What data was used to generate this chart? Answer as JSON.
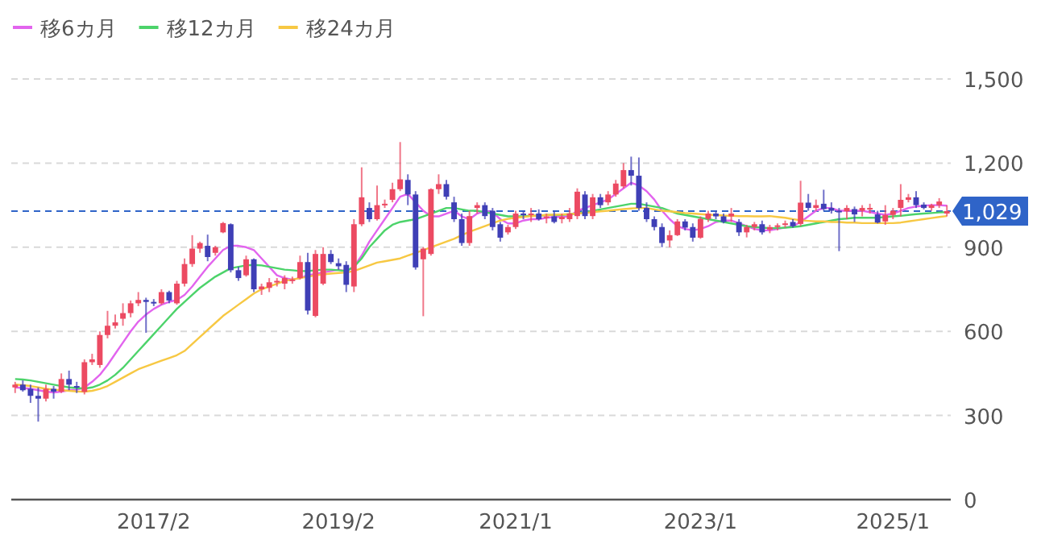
{
  "chart_data": {
    "type": "candlestick",
    "categories": [
      null,
      null,
      null,
      null,
      null,
      null,
      null,
      null,
      null,
      null,
      null,
      null,
      null,
      null,
      null,
      null,
      null,
      null,
      "2017/2",
      null,
      null,
      null,
      null,
      null,
      null,
      null,
      null,
      null,
      null,
      null,
      null,
      null,
      null,
      null,
      null,
      null,
      null,
      null,
      null,
      null,
      null,
      null,
      "2019/2",
      null,
      null,
      null,
      null,
      null,
      null,
      null,
      null,
      null,
      null,
      null,
      null,
      null,
      null,
      null,
      null,
      null,
      null,
      null,
      null,
      null,
      null,
      "2021/1",
      null,
      null,
      null,
      null,
      null,
      null,
      null,
      null,
      null,
      null,
      null,
      null,
      null,
      null,
      null,
      null,
      null,
      null,
      null,
      null,
      null,
      null,
      null,
      "2023/1",
      null,
      null,
      null,
      null,
      null,
      null,
      null,
      null,
      null,
      null,
      null,
      null,
      null,
      null,
      null,
      null,
      null,
      null,
      null,
      null,
      null,
      null,
      null,
      null,
      "2025/1",
      null,
      null,
      null,
      null,
      null,
      null,
      null
    ],
    "ohlc": [
      [
        400,
        420,
        380,
        410
      ],
      [
        410,
        425,
        385,
        390
      ],
      [
        395,
        410,
        345,
        370
      ],
      [
        370,
        400,
        278,
        360
      ],
      [
        360,
        410,
        350,
        395
      ],
      [
        395,
        405,
        360,
        385
      ],
      [
        385,
        450,
        380,
        430
      ],
      [
        430,
        460,
        390,
        410
      ],
      [
        405,
        420,
        380,
        400
      ],
      [
        384,
        500,
        375,
        490
      ],
      [
        490,
        520,
        480,
        500
      ],
      [
        480,
        600,
        470,
        587
      ],
      [
        587,
        673,
        575,
        620
      ],
      [
        620,
        660,
        610,
        632
      ],
      [
        645,
        700,
        620,
        665
      ],
      [
        665,
        710,
        650,
        700
      ],
      [
        700,
        740,
        690,
        712
      ],
      [
        712,
        720,
        595,
        705
      ],
      [
        705,
        715,
        690,
        700
      ],
      [
        700,
        750,
        695,
        740
      ],
      [
        740,
        745,
        700,
        710
      ],
      [
        700,
        780,
        695,
        770
      ],
      [
        770,
        860,
        760,
        840
      ],
      [
        840,
        943,
        830,
        895
      ],
      [
        895,
        920,
        880,
        915
      ],
      [
        905,
        945,
        850,
        865
      ],
      [
        880,
        905,
        870,
        900
      ],
      [
        953,
        990,
        950,
        986
      ],
      [
        982,
        985,
        810,
        818
      ],
      [
        818,
        830,
        780,
        790
      ],
      [
        800,
        870,
        795,
        857
      ],
      [
        857,
        860,
        740,
        750
      ],
      [
        750,
        770,
        730,
        760
      ],
      [
        755,
        790,
        740,
        775
      ],
      [
        775,
        790,
        760,
        780
      ],
      [
        770,
        800,
        750,
        790
      ],
      [
        785,
        795,
        770,
        785
      ],
      [
        790,
        870,
        785,
        847
      ],
      [
        847,
        880,
        660,
        674
      ],
      [
        655,
        890,
        650,
        876
      ],
      [
        770,
        900,
        765,
        876
      ],
      [
        876,
        890,
        840,
        847
      ],
      [
        843,
        860,
        820,
        832
      ],
      [
        837,
        850,
        740,
        766
      ],
      [
        760,
        1000,
        740,
        982
      ],
      [
        982,
        1185,
        975,
        1078
      ],
      [
        1040,
        1060,
        990,
        1000
      ],
      [
        1000,
        1120,
        995,
        1050
      ],
      [
        1050,
        1070,
        1040,
        1055
      ],
      [
        1069,
        1130,
        1060,
        1107
      ],
      [
        1107,
        1275,
        1100,
        1142
      ],
      [
        1140,
        1160,
        1050,
        1088
      ],
      [
        1088,
        1100,
        820,
        828
      ],
      [
        857,
        900,
        654,
        895
      ],
      [
        876,
        1110,
        870,
        1107
      ],
      [
        1107,
        1160,
        1090,
        1125
      ],
      [
        1125,
        1140,
        1070,
        1080
      ],
      [
        1060,
        1080,
        990,
        1000
      ],
      [
        1000,
        1020,
        905,
        915
      ],
      [
        915,
        1030,
        905,
        1011
      ],
      [
        1040,
        1060,
        1020,
        1050
      ],
      [
        1050,
        1060,
        1000,
        1011
      ],
      [
        1030,
        1040,
        960,
        972
      ],
      [
        982,
        990,
        920,
        934
      ],
      [
        953,
        980,
        945,
        972
      ],
      [
        972,
        1030,
        965,
        1020
      ],
      [
        1020,
        1030,
        1000,
        1015
      ],
      [
        1015,
        1040,
        990,
        1020
      ],
      [
        1020,
        1035,
        995,
        1000
      ],
      [
        1005,
        1020,
        985,
        1010
      ],
      [
        1010,
        1030,
        985,
        990
      ],
      [
        1000,
        1020,
        985,
        1008
      ],
      [
        1000,
        1040,
        990,
        1020
      ],
      [
        1011,
        1110,
        1000,
        1098
      ],
      [
        1088,
        1100,
        1000,
        1011
      ],
      [
        1011,
        1090,
        1000,
        1078
      ],
      [
        1078,
        1090,
        1040,
        1050
      ],
      [
        1060,
        1100,
        1050,
        1088
      ],
      [
        1088,
        1140,
        1080,
        1127
      ],
      [
        1117,
        1200,
        1110,
        1175
      ],
      [
        1175,
        1223,
        1120,
        1155
      ],
      [
        1155,
        1220,
        1030,
        1040
      ],
      [
        1040,
        1060,
        990,
        1000
      ],
      [
        1000,
        1010,
        960,
        972
      ],
      [
        972,
        985,
        900,
        915
      ],
      [
        924,
        960,
        900,
        943
      ],
      [
        943,
        1000,
        940,
        992
      ],
      [
        992,
        1000,
        960,
        970
      ],
      [
        972,
        985,
        920,
        934
      ],
      [
        934,
        1010,
        930,
        1001
      ],
      [
        1001,
        1030,
        990,
        1020
      ],
      [
        1020,
        1030,
        1000,
        1010
      ],
      [
        1010,
        1020,
        985,
        990
      ],
      [
        1010,
        1040,
        990,
        1020
      ],
      [
        990,
        1000,
        940,
        953
      ],
      [
        953,
        980,
        935,
        972
      ],
      [
        972,
        990,
        960,
        982
      ],
      [
        982,
        995,
        945,
        953
      ],
      [
        963,
        980,
        950,
        972
      ],
      [
        972,
        985,
        960,
        978
      ],
      [
        980,
        995,
        970,
        985
      ],
      [
        990,
        1000,
        970,
        975
      ],
      [
        983,
        1137,
        975,
        1059
      ],
      [
        1059,
        1090,
        1030,
        1040
      ],
      [
        1040,
        1070,
        1030,
        1050
      ],
      [
        1055,
        1105,
        1030,
        1036
      ],
      [
        1040,
        1060,
        1020,
        1030
      ],
      [
        1030,
        1040,
        886,
        1028
      ],
      [
        1028,
        1050,
        1000,
        1040
      ],
      [
        1036,
        1045,
        990,
        1017
      ],
      [
        1030,
        1050,
        1010,
        1040
      ],
      [
        1040,
        1055,
        1020,
        1040
      ],
      [
        1017,
        1030,
        985,
        988
      ],
      [
        992,
        1050,
        980,
        1015
      ],
      [
        1015,
        1040,
        1000,
        1030
      ],
      [
        1040,
        1125,
        1010,
        1069
      ],
      [
        1069,
        1090,
        1060,
        1078
      ],
      [
        1078,
        1100,
        1040,
        1050
      ],
      [
        1052,
        1060,
        1035,
        1040
      ],
      [
        1040,
        1055,
        1030,
        1050
      ],
      [
        1050,
        1075,
        1040,
        1063
      ],
      [
        1020,
        1050,
        1010,
        1029
      ]
    ],
    "colors": [
      "#ec4a62",
      "#3f3fb6",
      "#3f3fb6",
      "#3f3fb6",
      "#ec4a62",
      "#3f3fb6",
      "#ec4a62",
      "#3f3fb6",
      "#3f3fb6",
      "#ec4a62",
      "#ec4a62",
      "#ec4a62",
      "#ec4a62",
      "#ec4a62",
      "#ec4a62",
      "#ec4a62",
      "#ec4a62",
      "#3f3fb6",
      "#3f3fb6",
      "#ec4a62",
      "#3f3fb6",
      "#ec4a62",
      "#ec4a62",
      "#ec4a62",
      "#ec4a62",
      "#3f3fb6",
      "#ec4a62",
      "#ec4a62",
      "#3f3fb6",
      "#3f3fb6",
      "#ec4a62",
      "#3f3fb6",
      "#ec4a62",
      "#ec4a62",
      "#ec4a62",
      "#ec4a62",
      "#ec4a62",
      "#ec4a62",
      "#3f3fb6",
      "#ec4a62",
      "#ec4a62",
      "#3f3fb6",
      "#3f3fb6",
      "#3f3fb6",
      "#ec4a62",
      "#ec4a62",
      "#3f3fb6",
      "#ec4a62",
      "#ec4a62",
      "#ec4a62",
      "#ec4a62",
      "#3f3fb6",
      "#3f3fb6",
      "#ec4a62",
      "#ec4a62",
      "#ec4a62",
      "#3f3fb6",
      "#3f3fb6",
      "#3f3fb6",
      "#ec4a62",
      "#ec4a62",
      "#3f3fb6",
      "#3f3fb6",
      "#3f3fb6",
      "#ec4a62",
      "#ec4a62",
      "#3f3fb6",
      "#ec4a62",
      "#3f3fb6",
      "#ec4a62",
      "#3f3fb6",
      "#ec4a62",
      "#ec4a62",
      "#ec4a62",
      "#3f3fb6",
      "#ec4a62",
      "#3f3fb6",
      "#ec4a62",
      "#ec4a62",
      "#ec4a62",
      "#3f3fb6",
      "#3f3fb6",
      "#3f3fb6",
      "#3f3fb6",
      "#3f3fb6",
      "#ec4a62",
      "#ec4a62",
      "#3f3fb6",
      "#3f3fb6",
      "#ec4a62",
      "#ec4a62",
      "#3f3fb6",
      "#3f3fb6",
      "#ec4a62",
      "#3f3fb6",
      "#ec4a62",
      "#ec4a62",
      "#3f3fb6",
      "#ec4a62",
      "#ec4a62",
      "#ec4a62",
      "#3f3fb6",
      "#ec4a62",
      "#3f3fb6",
      "#ec4a62",
      "#3f3fb6",
      "#3f3fb6",
      "#3f3fb6",
      "#ec4a62",
      "#3f3fb6",
      "#ec4a62",
      "#ec4a62",
      "#3f3fb6",
      "#ec4a62",
      "#ec4a62",
      "#ec4a62",
      "#ec4a62",
      "#3f3fb6",
      "#3f3fb6",
      "#ec4a62",
      "#ec4a62",
      "#ec4a62"
    ],
    "series": [
      {
        "name": "移6カ月",
        "type": "line",
        "color": "#e264ee",
        "values": [
          400,
          398,
          395,
          390,
          385,
          382,
          385,
          390,
          392,
          400,
          420,
          445,
          480,
          520,
          560,
          600,
          635,
          660,
          680,
          695,
          705,
          712,
          730,
          760,
          795,
          830,
          860,
          890,
          905,
          905,
          900,
          890,
          860,
          830,
          800,
          790,
          785,
          790,
          800,
          805,
          810,
          815,
          820,
          815,
          830,
          870,
          920,
          960,
          1000,
          1040,
          1080,
          1090,
          1060,
          1030,
          1010,
          1010,
          1020,
          1030,
          1010,
          1000,
          1020,
          1030,
          1025,
          1000,
          985,
          985,
          995,
          1000,
          1000,
          1005,
          1008,
          1008,
          1010,
          1030,
          1040,
          1050,
          1060,
          1070,
          1090,
          1110,
          1130,
          1120,
          1100,
          1070,
          1030,
          1000,
          975,
          965,
          960,
          965,
          975,
          990,
          995,
          995,
          985,
          975,
          965,
          960,
          960,
          965,
          970,
          975,
          990,
          1010,
          1030,
          1040,
          1040,
          1030,
          1030,
          1030,
          1030,
          1025,
          1020,
          1015,
          1020,
          1030,
          1040,
          1045,
          1048,
          1050,
          1050,
          1048
        ]
      },
      {
        "name": "移12カ月",
        "type": "line",
        "color": "#4cd36a",
        "values": [
          430,
          428,
          425,
          420,
          415,
          410,
          405,
          400,
          398,
          396,
          400,
          410,
          425,
          445,
          470,
          500,
          530,
          560,
          590,
          620,
          650,
          680,
          705,
          730,
          755,
          775,
          795,
          810,
          825,
          830,
          835,
          837,
          835,
          830,
          825,
          820,
          818,
          815,
          815,
          818,
          820,
          820,
          818,
          815,
          830,
          860,
          900,
          930,
          960,
          980,
          990,
          995,
          1000,
          1010,
          1020,
          1030,
          1040,
          1040,
          1035,
          1030,
          1030,
          1025,
          1020,
          1015,
          1010,
          1010,
          1010,
          1012,
          1012,
          1015,
          1015,
          1015,
          1018,
          1020,
          1025,
          1030,
          1035,
          1040,
          1045,
          1050,
          1055,
          1055,
          1050,
          1045,
          1040,
          1030,
          1020,
          1015,
          1010,
          1005,
          1000,
          995,
          990,
          985,
          980,
          975,
          972,
          970,
          968,
          968,
          970,
          972,
          975,
          980,
          985,
          990,
          995,
          1000,
          1002,
          1005,
          1005,
          1005,
          1005,
          1008,
          1010,
          1012,
          1015,
          1018,
          1020,
          1022,
          1024,
          1025
        ]
      },
      {
        "name": "移24カ月",
        "type": "line",
        "color": "#f7c843",
        "values": [
          410,
          408,
          405,
          400,
          395,
          392,
          390,
          388,
          386,
          385,
          388,
          395,
          405,
          420,
          435,
          450,
          465,
          475,
          485,
          495,
          505,
          515,
          530,
          555,
          580,
          605,
          630,
          655,
          675,
          695,
          715,
          735,
          750,
          760,
          770,
          780,
          785,
          790,
          795,
          800,
          803,
          806,
          808,
          810,
          815,
          825,
          835,
          845,
          850,
          855,
          860,
          870,
          880,
          890,
          900,
          910,
          920,
          930,
          943,
          955,
          965,
          975,
          985,
          995,
          1001,
          1005,
          1008,
          1011,
          1013,
          1015,
          1016,
          1017,
          1018,
          1020,
          1022,
          1025,
          1028,
          1030,
          1033,
          1036,
          1038,
          1040,
          1040,
          1035,
          1030,
          1028,
          1025,
          1022,
          1020,
          1018,
          1016,
          1015,
          1013,
          1012,
          1011,
          1011,
          1010,
          1010,
          1011,
          1008,
          1005,
          1000,
          996,
          994,
          992,
          992,
          990,
          990,
          988,
          988,
          986,
          986,
          986,
          986,
          986,
          988,
          992,
          996,
          1000,
          1004,
          1008,
          1011
        ]
      }
    ],
    "ylim": [
      0,
      1500
    ],
    "yticks": [
      0,
      300,
      600,
      900,
      {
        "value": 1200,
        "label": "1,200"
      },
      {
        "value": 1500,
        "label": "1,500"
      }
    ],
    "ref_lines": [
      {
        "axis": "y",
        "value": 1029,
        "label": "1,029",
        "color": "#2f64c8",
        "line_style": "dashed"
      }
    ],
    "grid": "y",
    "legend": "top left"
  }
}
